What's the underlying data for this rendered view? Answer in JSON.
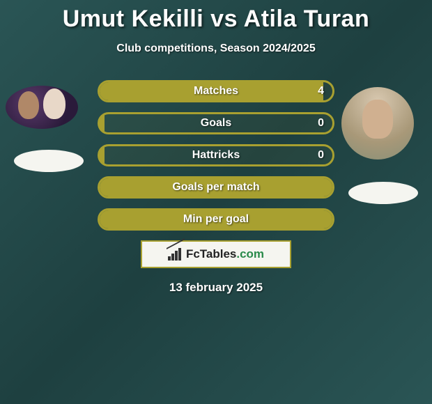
{
  "title": "Umut Kekilli vs Atila Turan",
  "subtitle": "Club competitions, Season 2024/2025",
  "date": "13 february 2025",
  "logo": {
    "brand": "FcTables",
    "suffix": ".com"
  },
  "colors": {
    "accent": "#a8a030",
    "background_gradient": [
      "#2a5555",
      "#1e4040",
      "#2a5555"
    ],
    "badge_bg": "#f5f5f0",
    "logo_dot": "#2a8a4a"
  },
  "players": {
    "left": {
      "name": "Umut Kekilli"
    },
    "right": {
      "name": "Atila Turan"
    }
  },
  "stats": [
    {
      "label": "Matches",
      "value": "4",
      "fill_pct": 96
    },
    {
      "label": "Goals",
      "value": "0",
      "fill_pct": 2
    },
    {
      "label": "Hattricks",
      "value": "0",
      "fill_pct": 2
    },
    {
      "label": "Goals per match",
      "value": "",
      "fill_pct": 100
    },
    {
      "label": "Min per goal",
      "value": "",
      "fill_pct": 100
    }
  ]
}
